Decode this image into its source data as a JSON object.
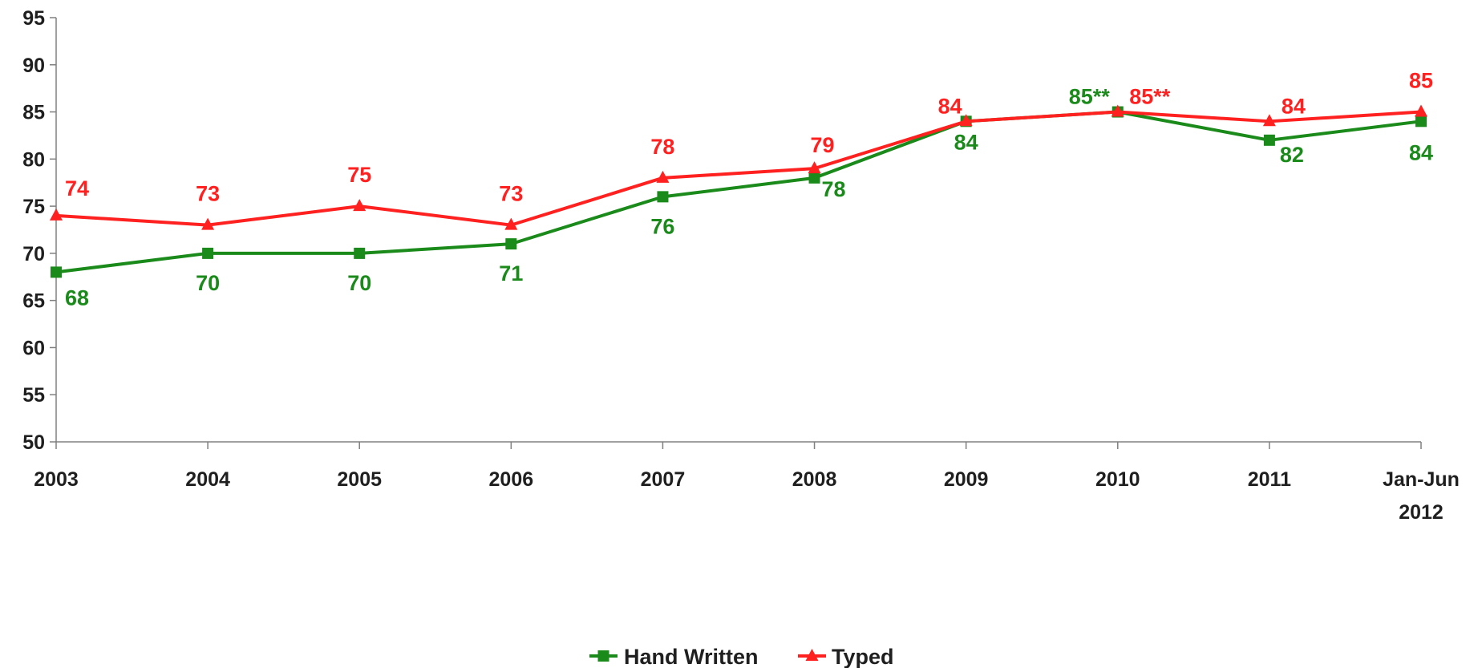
{
  "chart_data": {
    "type": "line",
    "title": "",
    "xlabel": "",
    "ylabel": "",
    "ylim": [
      50,
      95
    ],
    "y_ticks": [
      50,
      55,
      60,
      65,
      70,
      75,
      80,
      85,
      90,
      95
    ],
    "categories": [
      [
        "2003"
      ],
      [
        "2004"
      ],
      [
        "2005"
      ],
      [
        "2006"
      ],
      [
        "2007"
      ],
      [
        "2008"
      ],
      [
        "2009"
      ],
      [
        "2010"
      ],
      [
        "2011"
      ],
      [
        "Jan-Jun",
        "2012"
      ]
    ],
    "grid": false,
    "legend_position": "bottom-center",
    "series": [
      {
        "name": "Hand Written",
        "color": "#1a8a1a",
        "marker": "square",
        "values": [
          68,
          70,
          70,
          71,
          76,
          78,
          84,
          85,
          82,
          84
        ],
        "labels": [
          "68",
          "70",
          "70",
          "71",
          "76",
          "78",
          "84",
          "85**",
          "82",
          "84"
        ]
      },
      {
        "name": "Typed",
        "color": "#ff2020",
        "marker": "triangle",
        "values": [
          74,
          73,
          75,
          73,
          78,
          79,
          84,
          85,
          84,
          85
        ],
        "labels": [
          "74",
          "73",
          "75",
          "73",
          "78",
          "79",
          "84",
          "85**",
          "84",
          "85"
        ]
      }
    ]
  }
}
